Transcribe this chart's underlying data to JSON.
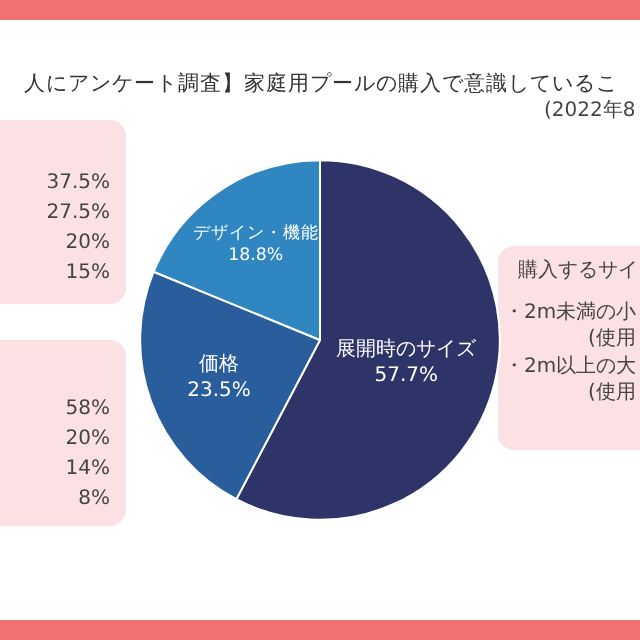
{
  "chart_data": {
    "type": "pie",
    "title": "人にアンケート調査】家庭用プールの購入で意識しているこ",
    "subtitle": "(2022年8",
    "categories": [
      "展開時のサイズ",
      "価格",
      "デザイン・機能"
    ],
    "values": [
      57.7,
      23.5,
      18.8
    ],
    "colors": [
      "#2e3468",
      "#2a5d9c",
      "#2f86c0"
    ],
    "value_labels": [
      "57.7%",
      "23.5%",
      "18.8%"
    ],
    "legend": false,
    "annotations": [
      "37.5%",
      "27.5%",
      "20%",
      "15%",
      "58%",
      "20%",
      "14%",
      "8%",
      "購入するサイ",
      "・2m未満の小",
      "(使用",
      "・2m以上の大",
      "(使用"
    ]
  }
}
